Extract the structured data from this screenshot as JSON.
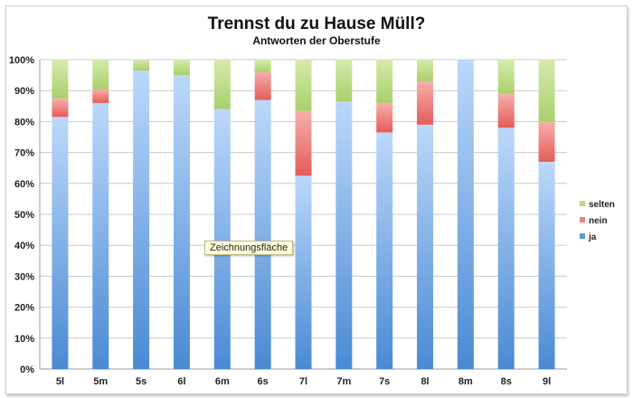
{
  "chart_data": {
    "type": "bar",
    "stacked": true,
    "title": "Trennst du zu Hause Müll?",
    "subtitle": "Antworten der Oberstufe",
    "categories": [
      "5l",
      "5m",
      "5s",
      "6l",
      "6m",
      "6s",
      "7l",
      "7m",
      "7s",
      "8l",
      "8m",
      "8s",
      "9l"
    ],
    "y_ticks": [
      "0%",
      "10%",
      "20%",
      "30%",
      "40%",
      "50%",
      "60%",
      "70%",
      "80%",
      "90%",
      "100%"
    ],
    "ylim": [
      0,
      100
    ],
    "grid": true,
    "legend_position": "right",
    "series": [
      {
        "name": "ja",
        "color": "#5b9bd5",
        "values": [
          81.5,
          86,
          96.5,
          95,
          84,
          87,
          62.5,
          86.5,
          76.5,
          79,
          100,
          78,
          67
        ]
      },
      {
        "name": "nein",
        "color": "#f08080",
        "values": [
          6,
          4.5,
          0,
          0,
          0,
          9,
          21,
          0,
          9.5,
          14,
          0,
          11,
          13
        ]
      },
      {
        "name": "selten",
        "color": "#b9dc7e",
        "values": [
          12.5,
          9.5,
          3.5,
          5,
          16,
          4,
          16.5,
          13.5,
          14,
          7,
          0,
          11,
          20
        ]
      }
    ],
    "legend_order": [
      "selten",
      "nein",
      "ja"
    ]
  },
  "tooltip": "Zeichnungsfläche"
}
